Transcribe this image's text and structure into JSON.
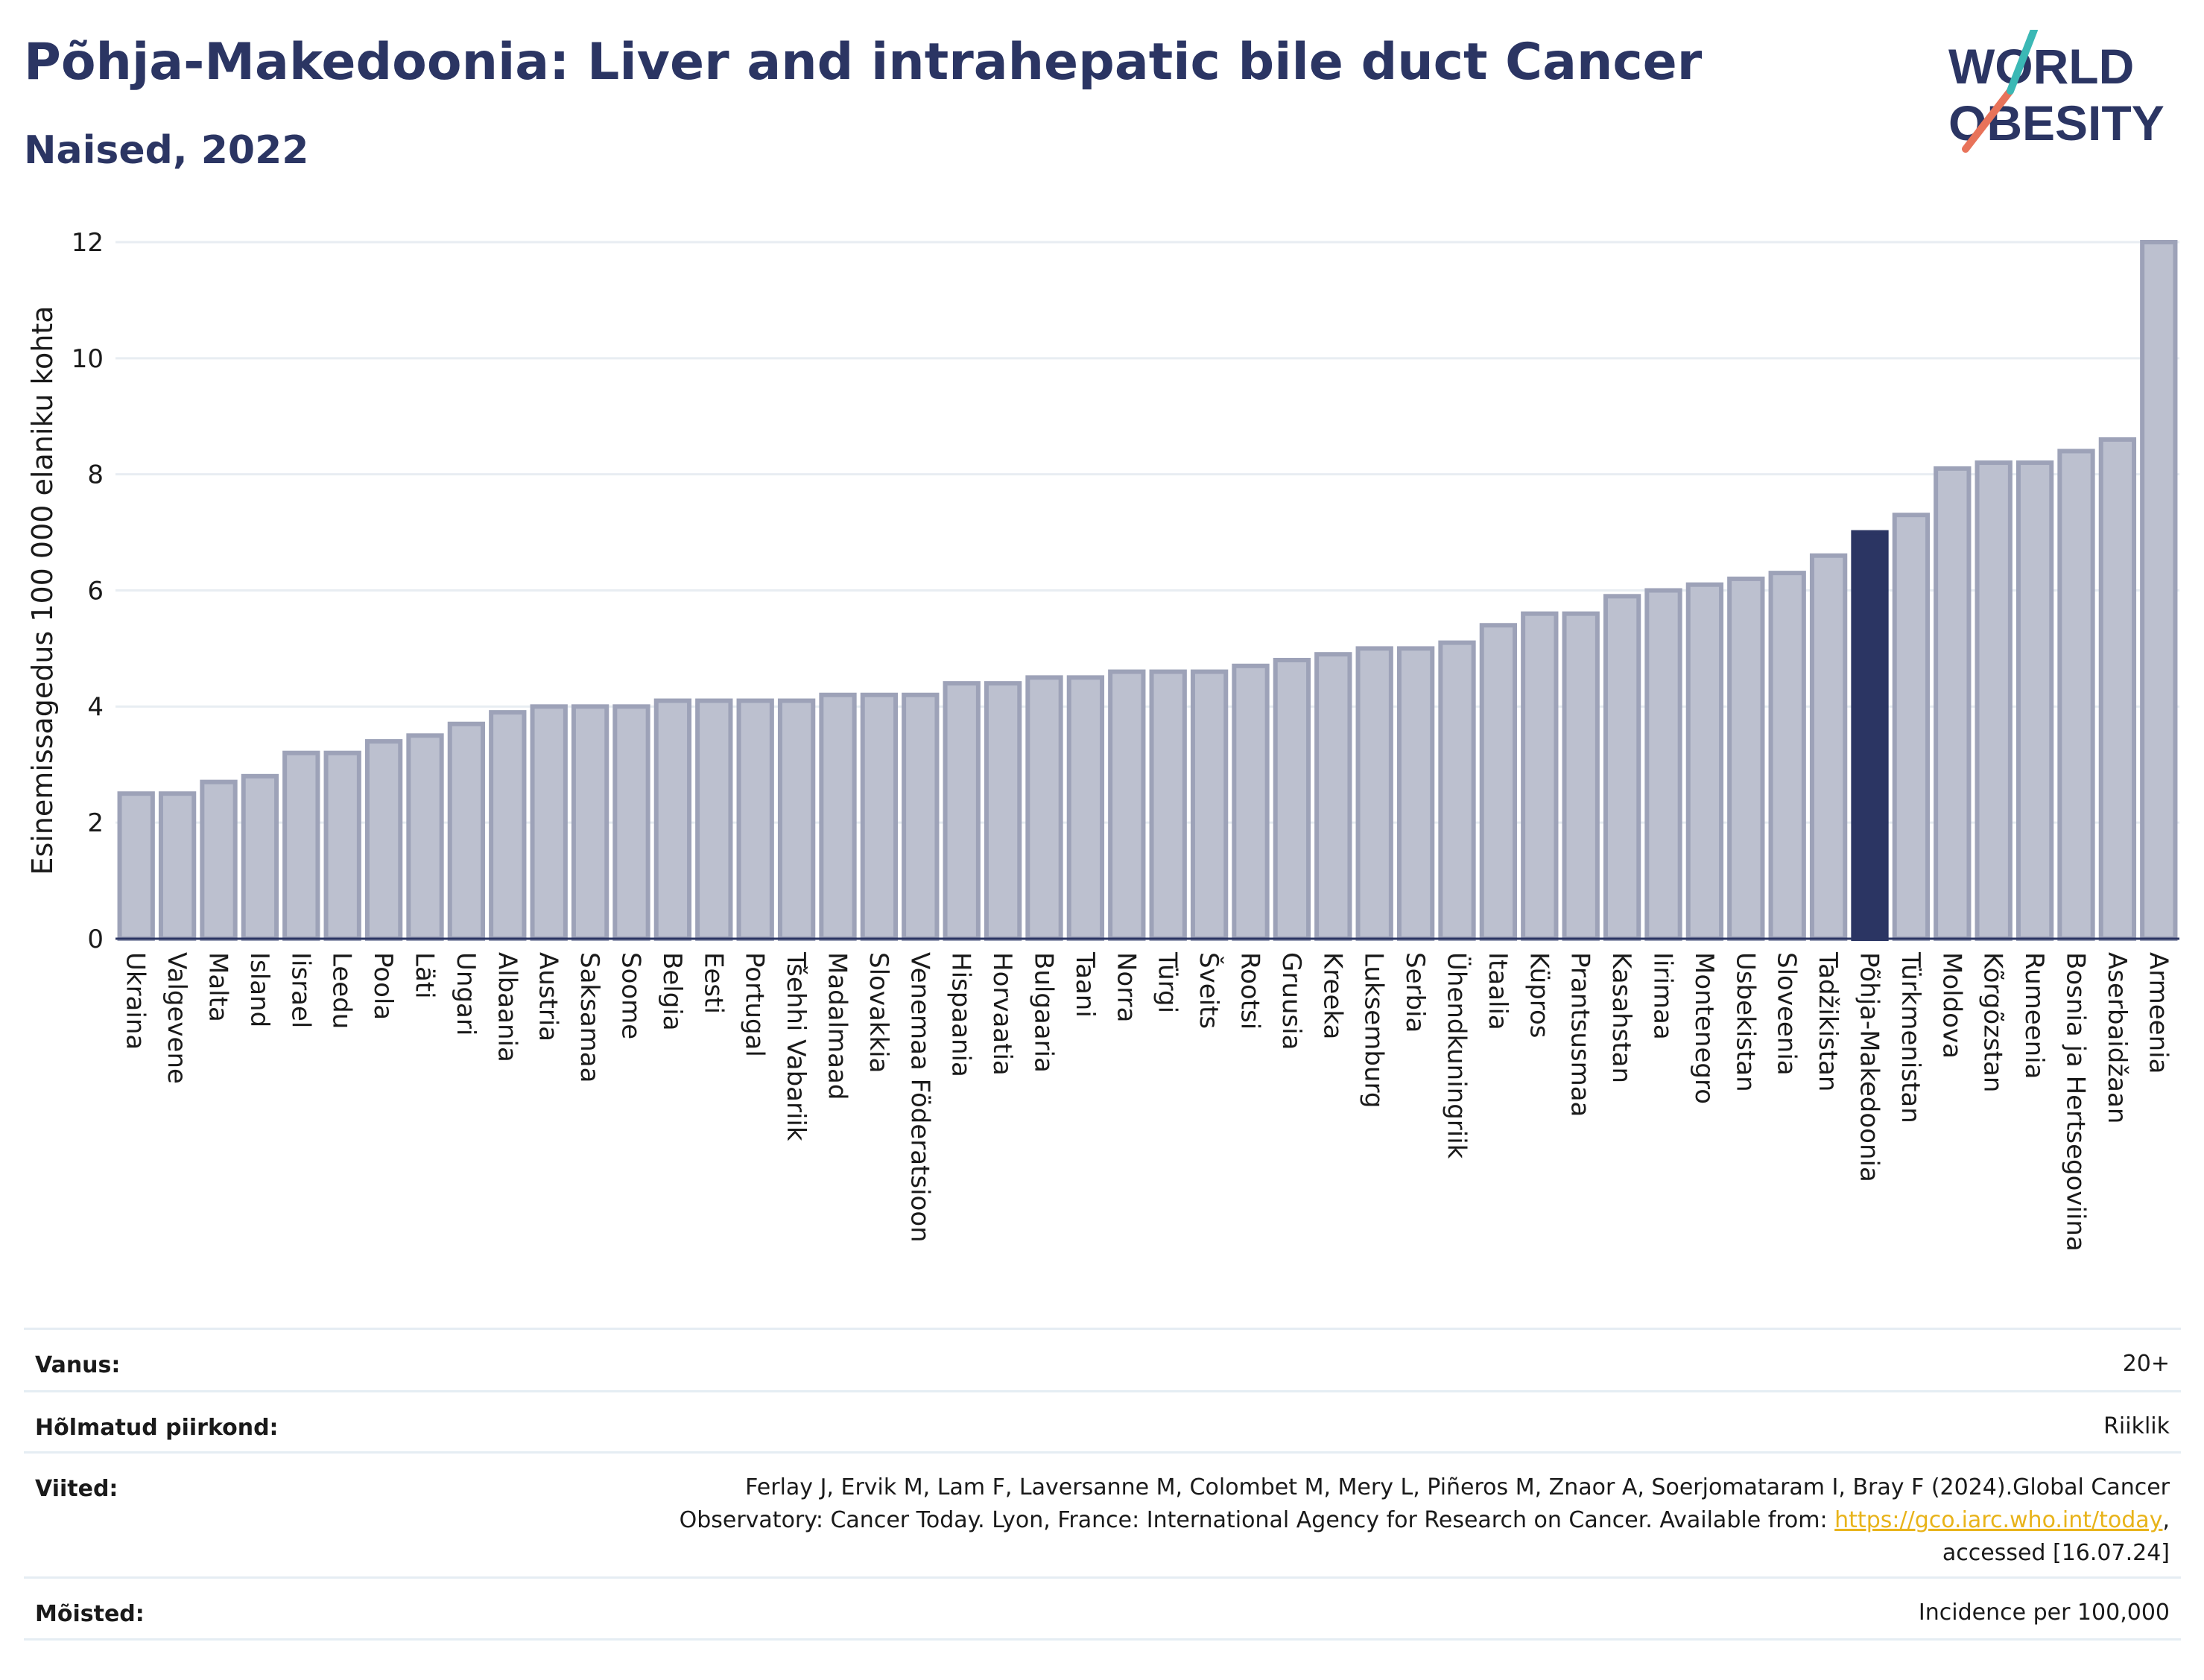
{
  "header": {
    "title": "Põhja-Makedoonia: Liver and intrahepatic bile duct Cancer",
    "subtitle": "Naised, 2022"
  },
  "logo": {
    "line1": "WORLD",
    "line2": "OBESITY"
  },
  "colors": {
    "bar": "#bcc0cf",
    "bar_border": "#9da2b8",
    "highlight": "#2b3563",
    "title": "#2b3563"
  },
  "chart_data": {
    "type": "bar",
    "ylabel": "Esinemissagedus 100 000 elaniku kohta",
    "ylim": [
      0,
      12
    ],
    "yticks": [
      0,
      2,
      4,
      6,
      8,
      10,
      12
    ],
    "grid": true,
    "highlight": "Põhja-Makedoonia",
    "categories": [
      "Ukraina",
      "Valgevene",
      "Malta",
      "Island",
      "Iisrael",
      "Leedu",
      "Poola",
      "Läti",
      "Ungari",
      "Albaania",
      "Austria",
      "Saksamaa",
      "Soome",
      "Belgia",
      "Eesti",
      "Portugal",
      "Tšehhi Vabariik",
      "Madalmaad",
      "Slovakkia",
      "Venemaa Föderatsioon",
      "Hispaania",
      "Horvaatia",
      "Bulgaaria",
      "Taani",
      "Norra",
      "Türgi",
      "Šveits",
      "Rootsi",
      "Gruusia",
      "Kreeka",
      "Luksemburg",
      "Serbia",
      "Ühendkuningriik",
      "Itaalia",
      "Küpros",
      "Prantsusmaa",
      "Kasahstan",
      "Iirimaa",
      "Montenegro",
      "Usbekistan",
      "Sloveenia",
      "Tadžikistan",
      "Põhja-Makedoonia",
      "Türkmenistan",
      "Moldova",
      "Kõrgõzstan",
      "Rumeenia",
      "Bosnia ja Hertsegoviina",
      "Aserbaidžaan",
      "Armeenia"
    ],
    "values": [
      2.5,
      2.5,
      2.7,
      2.8,
      3.2,
      3.2,
      3.4,
      3.5,
      3.7,
      3.9,
      4.0,
      4.0,
      4.0,
      4.1,
      4.1,
      4.1,
      4.1,
      4.2,
      4.2,
      4.2,
      4.4,
      4.4,
      4.5,
      4.5,
      4.6,
      4.6,
      4.6,
      4.7,
      4.8,
      4.9,
      5.0,
      5.0,
      5.1,
      5.4,
      5.6,
      5.6,
      5.9,
      6.0,
      6.1,
      6.2,
      6.3,
      6.6,
      7.0,
      7.3,
      8.1,
      8.2,
      8.2,
      8.4,
      8.6,
      12.0
    ]
  },
  "info": {
    "age_label": "Vanus:",
    "age_value": "20+",
    "area_label": "Hõlmatud piirkond:",
    "area_value": "Riiklik",
    "ref_label": "Viited:",
    "ref_line1": "Ferlay J, Ervik M, Lam F, Laversanne M, Colombet M, Mery L, Piñeros M, Znaor A, Soerjomataram I, Bray F (2024).Global Cancer",
    "ref_line2_pre": "Observatory: Cancer Today. Lyon, France: International Agency for Research on Cancer. Available from: ",
    "ref_link": "https://gco.iarc.who.int/today",
    "ref_line2_post": ",",
    "ref_line3": "accessed [16.07.24]",
    "def_label": "Mõisted:",
    "def_value": "Incidence per 100,000"
  }
}
